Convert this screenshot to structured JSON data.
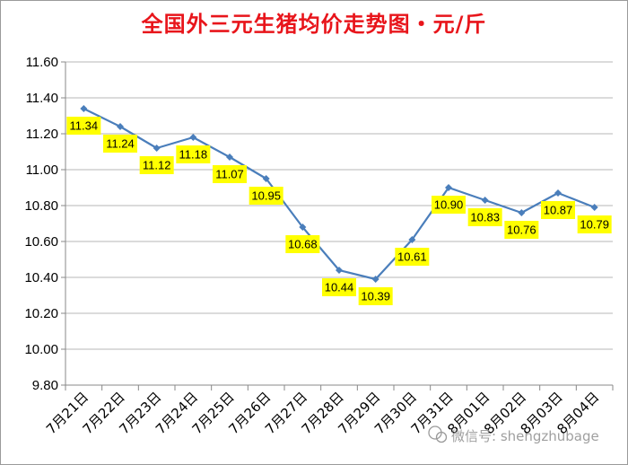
{
  "chart_data": {
    "type": "line",
    "title": "全国外三元生猪均价走势图・元/斤",
    "xlabel": "",
    "ylabel": "",
    "categories": [
      "7月21日",
      "7月22日",
      "7月23日",
      "7月24日",
      "7月25日",
      "7月26日",
      "7月27日",
      "7月28日",
      "7月29日",
      "7月30日",
      "7月31日",
      "8月01日",
      "8月02日",
      "8月03日",
      "8月04日"
    ],
    "series": [
      {
        "values": [
          11.34,
          11.24,
          11.12,
          11.18,
          11.07,
          10.95,
          10.68,
          10.44,
          10.39,
          10.61,
          10.9,
          10.83,
          10.76,
          10.87,
          10.79
        ]
      }
    ],
    "data_labels": [
      "11.34",
      "11.24",
      "11.12",
      "11.18",
      "11.07",
      "10.95",
      "10.68",
      "10.44",
      "10.39",
      "10.61",
      "10.90",
      "10.83",
      "10.76",
      "10.87",
      "10.79"
    ],
    "ylim": [
      9.8,
      11.6
    ],
    "yticks": [
      "9.80",
      "10.00",
      "10.20",
      "10.40",
      "10.60",
      "10.80",
      "11.00",
      "11.20",
      "11.40",
      "11.60"
    ],
    "grid": true,
    "legend": "none",
    "colors": {
      "line": "#4a7ebb",
      "marker": "#4a7ebb",
      "label_bg": "#ffff00",
      "title": "#e8151b",
      "grid": "#b7b7b7"
    }
  },
  "watermark": {
    "text": "微信号: shengzhubage",
    "icon": "wechat-icon"
  }
}
